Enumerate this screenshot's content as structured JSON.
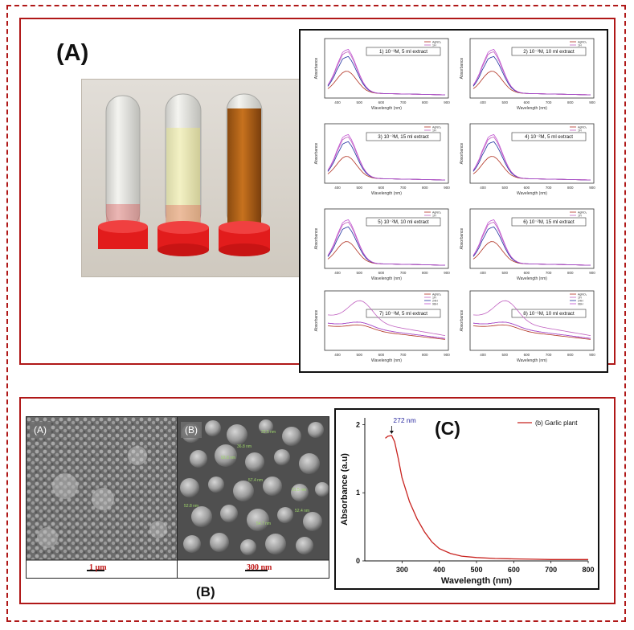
{
  "figure": {
    "top_label": "(A)",
    "sem_label": "(B)",
    "uv_label": "(C)"
  },
  "spectra": {
    "xlabel": "Wavelength (nm)",
    "ylabel": "Absorbance",
    "x_ticks": [
      "400",
      "500",
      "600",
      "700",
      "800",
      "900"
    ],
    "legend": [
      "AgNO₃",
      "1H",
      "24H",
      "96H"
    ],
    "series_colors": {
      "AgNO3": "#b03020",
      "1H": "#c060c0",
      "24H": "#2030a0",
      "96H": "#c050d0"
    },
    "panels": [
      {
        "caption": "1) 10⁻³M, 5 ml extract"
      },
      {
        "caption": "2) 10⁻³M, 10 ml extract"
      },
      {
        "caption": "3) 10⁻³M, 15 ml extract"
      },
      {
        "caption": "4) 10⁻²M, 5 ml extract"
      },
      {
        "caption": "5) 10⁻²M, 10 ml extract"
      },
      {
        "caption": "6) 10⁻²M, 15 ml extract"
      },
      {
        "caption": "7) 10⁻¹M, 5 ml extract"
      },
      {
        "caption": "8) 10⁻¹M, 10 ml extract"
      }
    ]
  },
  "sem": {
    "left_tag": "(A)",
    "right_tag": "(B)",
    "left_scale": "1 µm",
    "right_scale": "300 nm",
    "particle_labels": [
      "33.5 nm",
      "92.8 nm",
      "31.5 nm",
      "36.8 nm",
      "52.8 nm",
      "54.7 nm",
      "52.4 nm",
      "57.4 nm"
    ]
  },
  "chart_data": {
    "type": "line",
    "title": "",
    "xlabel": "Wavelength (nm)",
    "ylabel": "Absorbance (a.u)",
    "xlim": [
      200,
      800
    ],
    "ylim": [
      0,
      2.1
    ],
    "x_ticks": [
      300,
      400,
      500,
      600,
      700,
      800
    ],
    "y_ticks": [
      0,
      1,
      2
    ],
    "series": [
      {
        "name": "(b) Garlic plant",
        "color": "#c8231f",
        "x": [
          255,
          262,
          272,
          280,
          290,
          300,
          320,
          340,
          360,
          380,
          400,
          430,
          460,
          500,
          550,
          600,
          650,
          700,
          750,
          800
        ],
        "y": [
          1.8,
          1.83,
          1.84,
          1.75,
          1.5,
          1.22,
          0.87,
          0.62,
          0.43,
          0.28,
          0.18,
          0.11,
          0.07,
          0.05,
          0.035,
          0.03,
          0.025,
          0.02,
          0.02,
          0.02
        ]
      }
    ],
    "annotations": [
      {
        "text": "272 nm",
        "x": 272
      }
    ]
  }
}
